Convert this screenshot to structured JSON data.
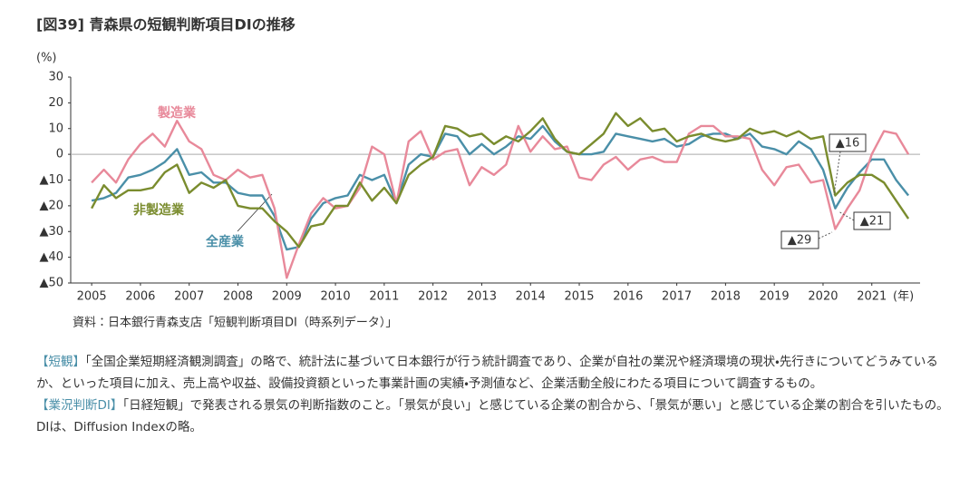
{
  "chart_data": {
    "type": "line",
    "title": "[図39] 青森県の短観判断項目DIの推移",
    "y_label": "(%)",
    "x_label": "(年)",
    "source": "資料：日本銀行青森支店「短観判断項目DI（時系列データ）」",
    "x": [
      2005,
      2005.25,
      2005.5,
      2005.75,
      2006,
      2006.25,
      2006.5,
      2006.75,
      2007,
      2007.25,
      2007.5,
      2007.75,
      2008,
      2008.25,
      2008.5,
      2008.75,
      2009,
      2009.25,
      2009.5,
      2009.75,
      2010,
      2010.25,
      2010.5,
      2010.75,
      2011,
      2011.25,
      2011.5,
      2011.75,
      2012,
      2012.25,
      2012.5,
      2012.75,
      2013,
      2013.25,
      2013.5,
      2013.75,
      2014,
      2014.25,
      2014.5,
      2014.75,
      2015,
      2015.25,
      2015.5,
      2015.75,
      2016,
      2016.25,
      2016.5,
      2016.75,
      2017,
      2017.25,
      2017.5,
      2017.75,
      2018,
      2018.25,
      2018.5,
      2018.75,
      2019,
      2019.25,
      2019.5,
      2019.75,
      2020,
      2020.25,
      2020.5,
      2020.75,
      2021,
      2021.25,
      2021.5,
      2021.75
    ],
    "xlim": [
      2004.57,
      2021.99
    ],
    "xticks": [
      2005,
      2006,
      2007,
      2008,
      2009,
      2010,
      2011,
      2012,
      2013,
      2014,
      2015,
      2016,
      2017,
      2018,
      2019,
      2020,
      2021
    ],
    "ylim": [
      -50,
      30
    ],
    "yticks": [
      {
        "value": -50,
        "label": "▲50"
      },
      {
        "value": -40,
        "label": "▲40"
      },
      {
        "value": -30,
        "label": "▲30"
      },
      {
        "value": -20,
        "label": "▲20"
      },
      {
        "value": -10,
        "label": "▲10"
      },
      0,
      10,
      20,
      30
    ],
    "zero_line": true,
    "series": [
      {
        "name": "製造業",
        "color": "#e8899a",
        "values": [
          -11,
          -6,
          -11,
          -2,
          4,
          8,
          3,
          13,
          5,
          2,
          -8,
          -10,
          -6,
          -9,
          -8,
          -21,
          -48,
          -35,
          -23,
          -17,
          -21,
          -20,
          -13,
          3,
          0,
          -19,
          5,
          9,
          -2,
          1,
          2,
          -12,
          -5,
          -8,
          -4,
          11,
          1,
          7,
          2,
          3,
          -9,
          -10,
          -4,
          -1,
          -6,
          -2,
          -1,
          -3,
          -3,
          8,
          11,
          11,
          7,
          7,
          6,
          -6,
          -12,
          -5,
          -4,
          -11,
          -10,
          -29,
          -21,
          -14,
          0,
          9,
          8,
          0
        ]
      },
      {
        "name": "非製造業",
        "color": "#7a8c2e",
        "values": [
          -21,
          -12,
          -17,
          -14,
          -14,
          -13,
          -7,
          -4,
          -15,
          -11,
          -13,
          -10,
          -20,
          -21,
          -21,
          -26,
          -30,
          -36,
          -28,
          -27,
          -20,
          -20,
          -11,
          -18,
          -13,
          -19,
          -8,
          -4,
          -1,
          11,
          10,
          7,
          8,
          4,
          7,
          5,
          9,
          14,
          6,
          1,
          0,
          4,
          8,
          16,
          11,
          14,
          9,
          10,
          5,
          7,
          8,
          6,
          5,
          6,
          10,
          8,
          9,
          7,
          9,
          6,
          7,
          -16,
          -11,
          -8,
          -8,
          -11,
          -18,
          -25
        ]
      },
      {
        "name": "全産業",
        "color": "#4a8fa8",
        "values": [
          -18,
          -17,
          -15,
          -9,
          -8,
          -6,
          -3,
          2,
          -8,
          -7,
          -11,
          -11,
          -15,
          -16,
          -16,
          -24,
          -37,
          -36,
          -25,
          -19,
          -17,
          -16,
          -8,
          -10,
          -8,
          -19,
          -4,
          0,
          -1,
          8,
          7,
          0,
          4,
          0,
          3,
          7,
          6,
          11,
          5,
          1,
          0,
          0,
          1,
          8,
          7,
          6,
          5,
          6,
          3,
          4,
          7,
          8,
          8,
          6,
          8,
          3,
          2,
          0,
          5,
          2,
          -6,
          -21,
          -13,
          -7,
          -2,
          -2,
          -10,
          -16
        ]
      }
    ],
    "annotations": [
      "▲16",
      "▲21",
      "▲29"
    ],
    "notes": [
      {
        "term": "【短観】",
        "text": "「全国企業短期経済観測調査」の略で、統計法に基づいて日本銀行が行う統計調査であり、企業が自社の業況や経済環境の現状・先行きについてどうみているか、といった項目に加え、売上高や収益、設備投資額といった事業計画の実績・予測値など、企業活動全般にわたる項目について調査するもの。"
      },
      {
        "term": "【業況判断DI】",
        "text": "「日経短観」で発表される景気の判断指数のこと。「景気が良い」と感じている企業の割合から、「景気が悪い」と感じている企業の割合を引いたもの。DIは、Diffusion Indexの略。"
      }
    ]
  }
}
